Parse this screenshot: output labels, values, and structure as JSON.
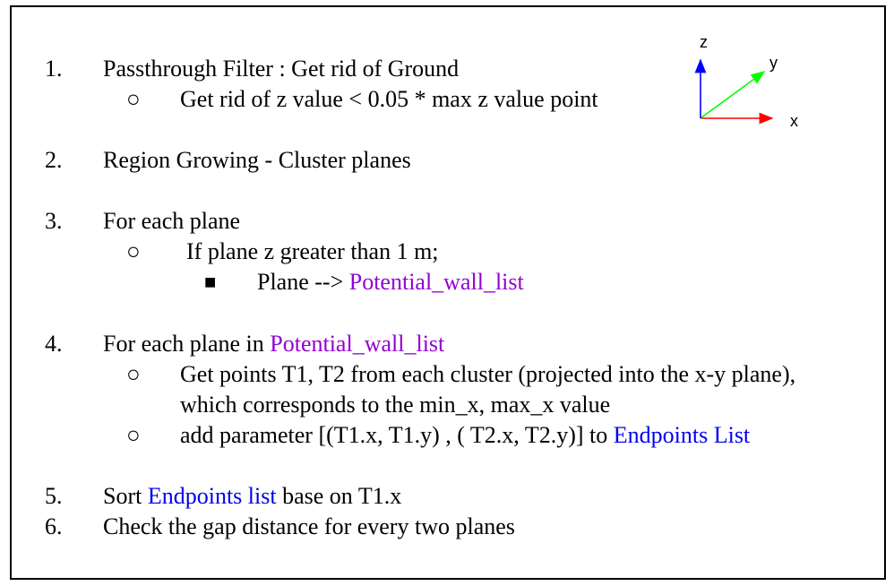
{
  "steps": [
    {
      "number": "1.",
      "text": "Passthrough Filter : Get rid of Ground",
      "sub": [
        {
          "bullet": "○",
          "text": "Get rid of z value < 0.05 * max z value point"
        }
      ]
    },
    {
      "number": "2.",
      "text": "Region Growing - Cluster planes"
    },
    {
      "number": "3.",
      "text": "For each plane",
      "sub": [
        {
          "bullet": "○",
          "text": "If plane z greater than 1 m;"
        }
      ],
      "subsub": {
        "bullet": "■",
        "prefix": "Plane --> ",
        "highlight": "Potential_wall_list"
      }
    },
    {
      "number": "4.",
      "prefix": "For each plane in ",
      "highlight": "Potential_wall_list",
      "sub": [
        {
          "bullet": "○",
          "text": "Get points T1, T2 from each cluster (projected into the x-y plane),",
          "continuation": "which corresponds to the  min_x, max_x value"
        },
        {
          "bullet": "○",
          "prefix": "add parameter [(T1.x, T1.y) , ( T2.x, T2.y)]  to ",
          "highlight": "Endpoints List"
        }
      ]
    },
    {
      "number": "5.",
      "prefix": "Sort ",
      "highlight": "Endpoints list",
      "suffix": " base on T1.x"
    },
    {
      "number": "6.",
      "text": "Check the gap distance for every two planes"
    }
  ],
  "axes": {
    "z_label": "z",
    "y_label": "y",
    "x_label": "x",
    "z_color": "#0000ff",
    "y_color": "#00ff00",
    "x_color": "#ff0000"
  },
  "colors": {
    "highlight_purple": "#9400d3",
    "highlight_blue": "#0000ee"
  }
}
